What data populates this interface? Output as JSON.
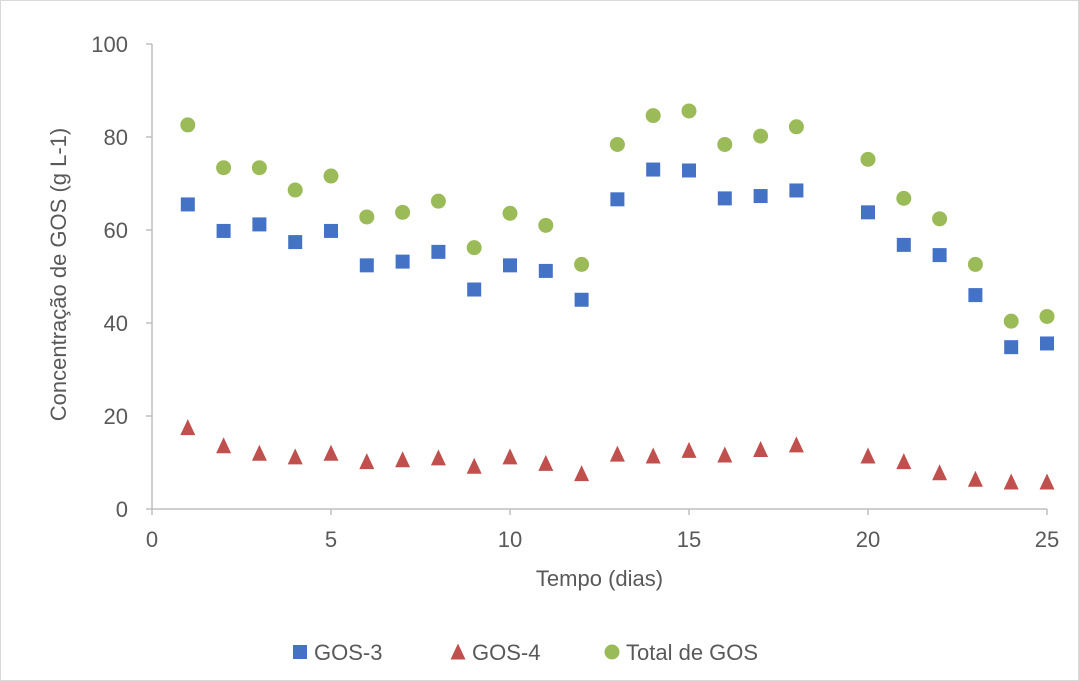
{
  "chart_data": {
    "type": "scatter",
    "title": "",
    "xlabel": "Tempo (dias)",
    "ylabel": "Concentração de GOS (g L-1)",
    "xlim": [
      0,
      25
    ],
    "ylim": [
      0,
      100
    ],
    "xticks": [
      "0",
      "5",
      "10",
      "15",
      "20",
      "25"
    ],
    "yticks": [
      "0",
      "20",
      "40",
      "60",
      "80",
      "100"
    ],
    "grid": false,
    "legend_position": "bottom",
    "series": [
      {
        "name": "GOS-3",
        "marker": "square",
        "color": "#4472C4",
        "points": [
          [
            1,
            65.5
          ],
          [
            2,
            59.8
          ],
          [
            3,
            61.2
          ],
          [
            4,
            57.4
          ],
          [
            5,
            59.8
          ],
          [
            6,
            52.4
          ],
          [
            7,
            53.2
          ],
          [
            8,
            55.3
          ],
          [
            9,
            47.2
          ],
          [
            10,
            52.4
          ],
          [
            11,
            51.2
          ],
          [
            12,
            45.0
          ],
          [
            13,
            66.6
          ],
          [
            14,
            73.0
          ],
          [
            15,
            72.8
          ],
          [
            16,
            66.8
          ],
          [
            17,
            67.3
          ],
          [
            18,
            68.5
          ],
          [
            20,
            63.8
          ],
          [
            21,
            56.8
          ],
          [
            22,
            54.6
          ],
          [
            23,
            46.0
          ],
          [
            24,
            34.8
          ],
          [
            25,
            35.6
          ]
        ]
      },
      {
        "name": "GOS-4",
        "marker": "triangle",
        "color": "#C0504D",
        "points": [
          [
            1,
            17.5
          ],
          [
            2,
            13.6
          ],
          [
            3,
            12.0
          ],
          [
            4,
            11.2
          ],
          [
            5,
            12.0
          ],
          [
            6,
            10.2
          ],
          [
            7,
            10.6
          ],
          [
            8,
            11.0
          ],
          [
            9,
            9.2
          ],
          [
            10,
            11.2
          ],
          [
            11,
            9.8
          ],
          [
            12,
            7.6
          ],
          [
            13,
            11.8
          ],
          [
            14,
            11.4
          ],
          [
            15,
            12.6
          ],
          [
            16,
            11.6
          ],
          [
            17,
            12.8
          ],
          [
            18,
            13.8
          ],
          [
            20,
            11.4
          ],
          [
            21,
            10.2
          ],
          [
            22,
            7.8
          ],
          [
            23,
            6.4
          ],
          [
            24,
            5.8
          ],
          [
            25,
            5.8
          ]
        ]
      },
      {
        "name": "Total de GOS",
        "marker": "circle",
        "color": "#9BBB59",
        "points": [
          [
            1,
            82.6
          ],
          [
            2,
            73.4
          ],
          [
            3,
            73.4
          ],
          [
            4,
            68.6
          ],
          [
            5,
            71.6
          ],
          [
            6,
            62.8
          ],
          [
            7,
            63.8
          ],
          [
            8,
            66.2
          ],
          [
            9,
            56.2
          ],
          [
            10,
            63.6
          ],
          [
            11,
            61.0
          ],
          [
            12,
            52.6
          ],
          [
            13,
            78.4
          ],
          [
            14,
            84.6
          ],
          [
            15,
            85.6
          ],
          [
            16,
            78.4
          ],
          [
            17,
            80.2
          ],
          [
            18,
            82.2
          ],
          [
            20,
            75.2
          ],
          [
            21,
            66.8
          ],
          [
            22,
            62.4
          ],
          [
            23,
            52.6
          ],
          [
            24,
            40.4
          ],
          [
            25,
            41.4
          ]
        ]
      }
    ]
  }
}
